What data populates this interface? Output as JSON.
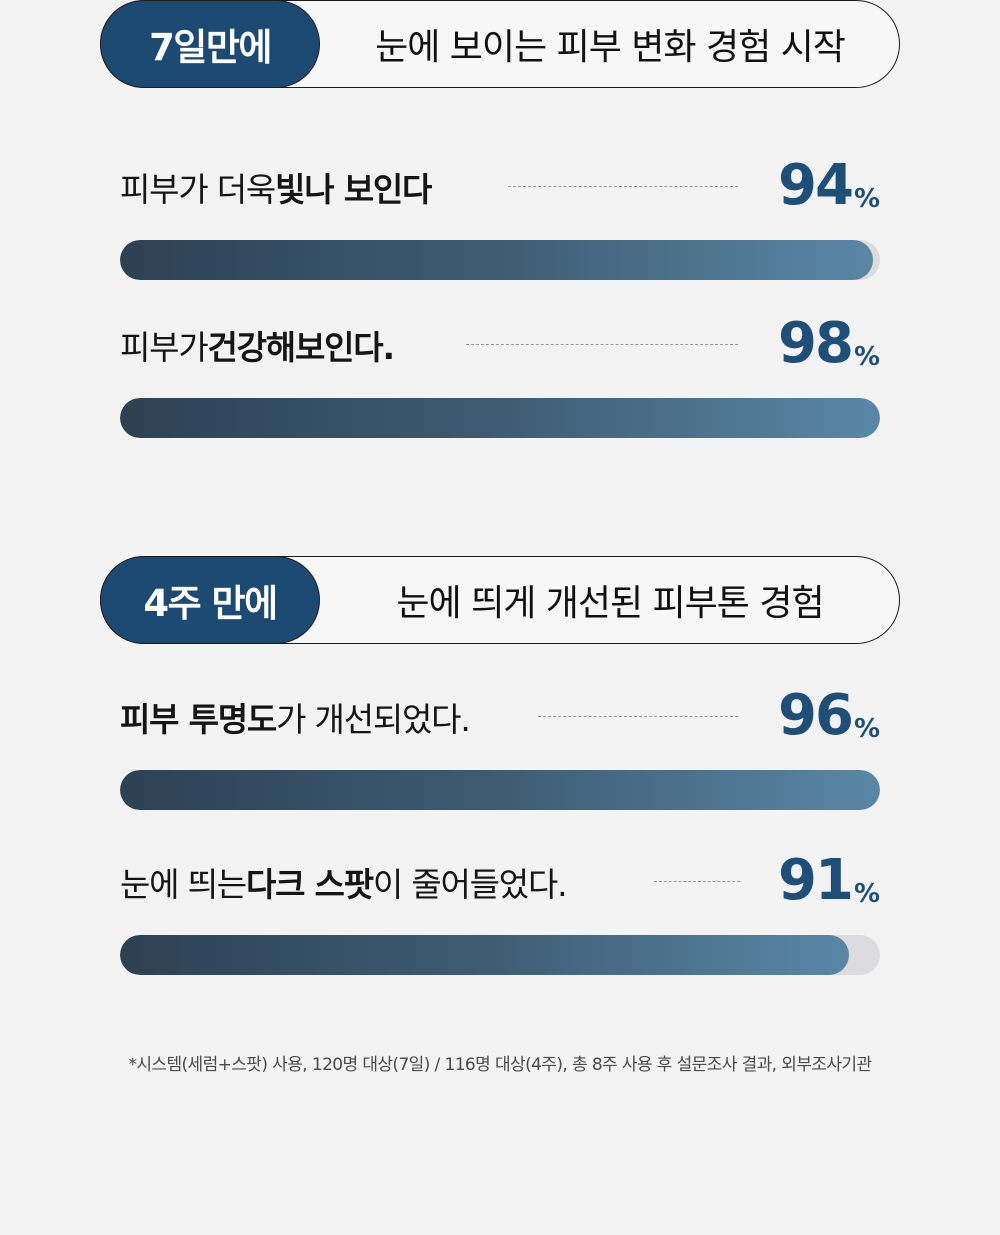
{
  "sections": [
    {
      "badge": "7일만에",
      "headline": "눈에 보이는 피부 변화 경험 시작",
      "stats": [
        {
          "label_pre": "피부가 더욱 ",
          "label_bold": "빛나 보인다",
          "label_post": "",
          "value": "94",
          "unit": "%",
          "percent": 94
        },
        {
          "label_pre": "피부가 ",
          "label_bold": "건강해보인다.",
          "label_post": "",
          "value": "98",
          "unit": "%",
          "percent": 98
        }
      ]
    },
    {
      "badge": "4주 만에",
      "headline": "눈에 띄게 개선된 피부톤 경험",
      "stats": [
        {
          "label_pre": "",
          "label_bold": "피부 투명도",
          "label_post": "가 개선되었다.",
          "value": "96",
          "unit": "%",
          "percent": 96
        },
        {
          "label_pre": "눈에 띄는 ",
          "label_bold": "다크 스팟",
          "label_post": "이 줄어들었다.",
          "value": "91",
          "unit": "%",
          "percent": 91
        }
      ]
    }
  ],
  "footnote": "*시스템(세럼+스팟) 사용, 120명 대상(7일) / 116명 대상(4주), 총 8주 사용 후 설문조사 결과, 외부조사기관"
}
